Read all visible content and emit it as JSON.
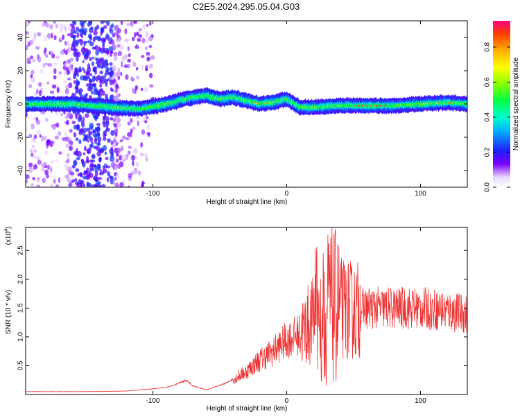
{
  "chart_data": [
    {
      "type": "heatmap",
      "title": "C2E5.2024.295.05.04.G03",
      "xlabel": "Height of straight line (km)",
      "ylabel": "Frequency (Hz)",
      "xlim": [
        -195,
        135
      ],
      "ylim": [
        -50,
        50
      ],
      "x_ticks": [
        -100,
        0,
        100
      ],
      "y_ticks": [
        -40,
        -20,
        0,
        20,
        40
      ],
      "colorbar": {
        "label": "Normalized spectral amplitude",
        "range": [
          0,
          0.95
        ],
        "ticks": [
          0.0,
          0.2,
          0.4,
          0.6,
          0.8
        ]
      },
      "ridge": {
        "x": [
          -195,
          -160,
          -130,
          -110,
          -90,
          -70,
          -60,
          -50,
          -40,
          -30,
          -20,
          -10,
          0,
          10,
          20,
          40,
          60,
          80,
          100,
          120,
          135
        ],
        "frequency": [
          0,
          0,
          -2,
          -3,
          0,
          4,
          5,
          3,
          4,
          2,
          0,
          1,
          3,
          -2,
          -2,
          -1,
          -1,
          -1,
          0,
          1,
          0
        ]
      }
    },
    {
      "type": "line",
      "xlabel": "Height of straight line (km)",
      "ylabel": "SNR (10 * v/v)",
      "y_scale_label": "(x10",
      "y_scale_exp": "4",
      "xlim": [
        -195,
        135
      ],
      "ylim": [
        0,
        2.9
      ],
      "x_ticks": [
        -100,
        0,
        100
      ],
      "y_ticks": [
        0.5,
        1.0,
        1.5,
        2.0,
        2.5
      ],
      "series": [
        {
          "color": "#ee3333",
          "x": [
            -195,
            -150,
            -120,
            -90,
            -80,
            -75,
            -70,
            -60,
            -45,
            -30,
            -20,
            -10,
            0,
            10,
            20,
            30,
            40,
            50,
            60,
            80,
            100,
            120,
            135
          ],
          "y": [
            0.05,
            0.05,
            0.06,
            0.12,
            0.2,
            0.25,
            0.15,
            0.08,
            0.2,
            0.4,
            0.6,
            0.75,
            0.95,
            1.05,
            1.3,
            1.55,
            1.5,
            1.45,
            1.5,
            1.5,
            1.5,
            1.45,
            1.4
          ]
        }
      ]
    }
  ]
}
